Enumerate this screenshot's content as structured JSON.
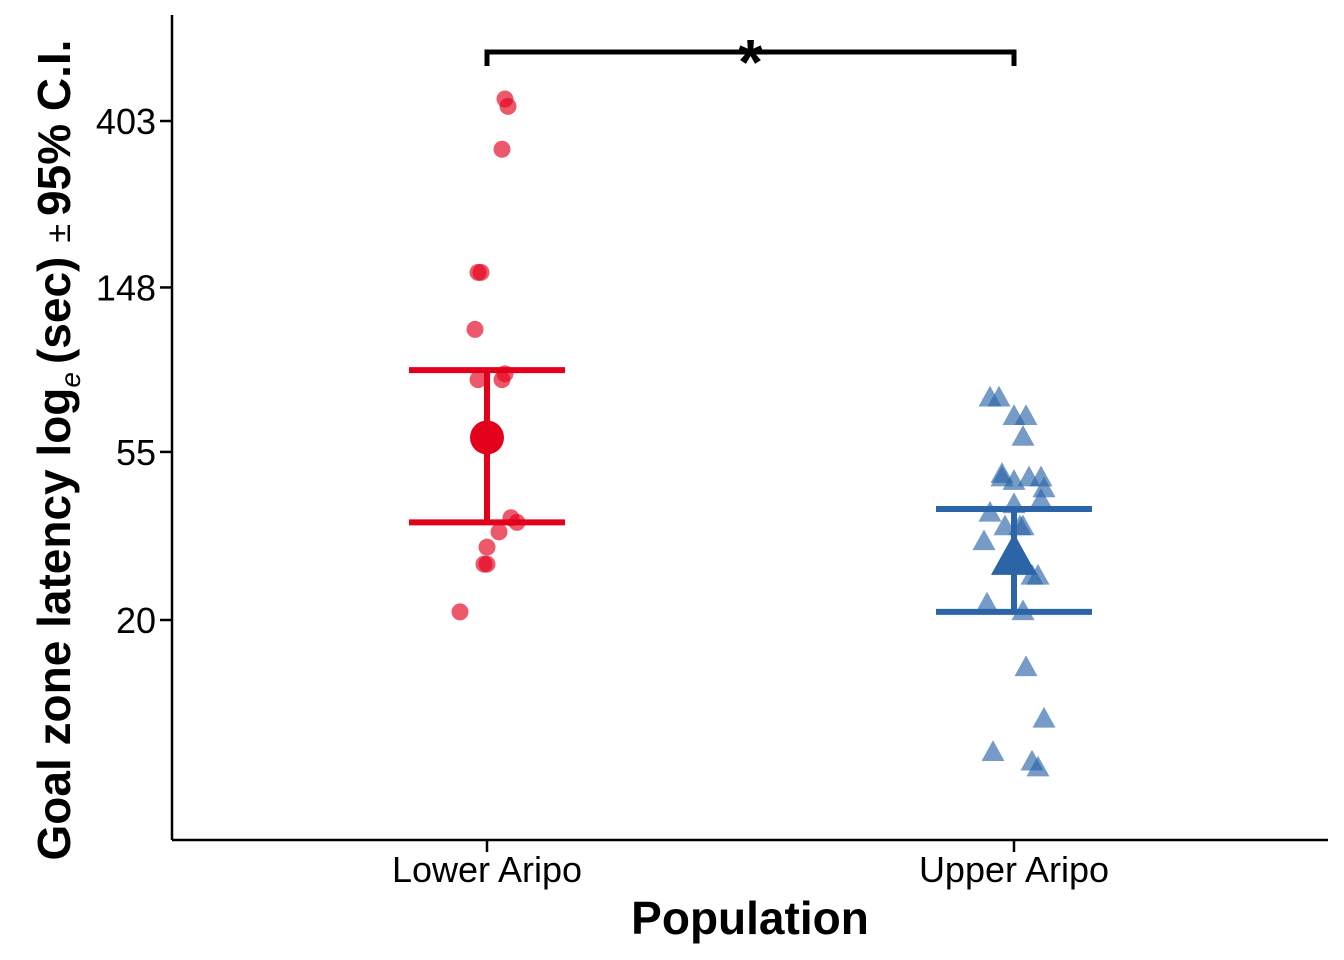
{
  "chart_data": {
    "type": "scatter",
    "xlabel": "Population",
    "ylabel_parts": {
      "prefix": "Goal zone latency log",
      "subscript": "e",
      "suffix": "(sec)",
      "ci": "± 95% C.I."
    },
    "y_scale": "log",
    "y_ticks": [
      {
        "value": 20,
        "label": "20"
      },
      {
        "value": 55,
        "label": "55"
      },
      {
        "value": 148,
        "label": "148"
      },
      {
        "value": 403,
        "label": "403"
      }
    ],
    "ylim": [
      5,
      700
    ],
    "categories": [
      "Lower Aripo",
      "Upper Aripo"
    ],
    "significance": {
      "label": "*",
      "between": [
        "Lower Aripo",
        "Upper Aripo"
      ]
    },
    "series": [
      {
        "category": "Lower Aripo",
        "color": "#E3001B",
        "marker": "circle",
        "mean": 60,
        "ci_lower": 36,
        "ci_upper": 90,
        "points": [
          {
            "offset": 0.06,
            "y": 460
          },
          {
            "offset": 0.07,
            "y": 440
          },
          {
            "offset": 0.05,
            "y": 340
          },
          {
            "offset": -0.03,
            "y": 162
          },
          {
            "offset": -0.02,
            "y": 162
          },
          {
            "offset": -0.04,
            "y": 115
          },
          {
            "offset": 0.06,
            "y": 88
          },
          {
            "offset": -0.03,
            "y": 85
          },
          {
            "offset": 0.05,
            "y": 85
          },
          {
            "offset": 0.08,
            "y": 37
          },
          {
            "offset": 0.1,
            "y": 36
          },
          {
            "offset": 0.04,
            "y": 34
          },
          {
            "offset": 0.0,
            "y": 31
          },
          {
            "offset": -0.01,
            "y": 28
          },
          {
            "offset": 0.0,
            "y": 28
          },
          {
            "offset": -0.09,
            "y": 21
          }
        ]
      },
      {
        "category": "Upper Aripo",
        "color": "#2B65A8",
        "marker": "triangle",
        "mean": 29,
        "ci_lower": 21,
        "ci_upper": 39,
        "points": [
          {
            "offset": -0.08,
            "y": 76
          },
          {
            "offset": -0.05,
            "y": 76
          },
          {
            "offset": 0.0,
            "y": 68
          },
          {
            "offset": 0.04,
            "y": 68
          },
          {
            "offset": 0.03,
            "y": 60
          },
          {
            "offset": -0.04,
            "y": 48
          },
          {
            "offset": -0.04,
            "y": 47
          },
          {
            "offset": 0.05,
            "y": 47
          },
          {
            "offset": 0.09,
            "y": 47
          },
          {
            "offset": 0.0,
            "y": 46
          },
          {
            "offset": 0.1,
            "y": 44
          },
          {
            "offset": 0.09,
            "y": 41
          },
          {
            "offset": 0.0,
            "y": 40
          },
          {
            "offset": -0.08,
            "y": 38
          },
          {
            "offset": 0.02,
            "y": 35
          },
          {
            "offset": -0.03,
            "y": 35
          },
          {
            "offset": 0.03,
            "y": 35
          },
          {
            "offset": -0.1,
            "y": 32
          },
          {
            "offset": -0.01,
            "y": 30
          },
          {
            "offset": 0.06,
            "y": 26
          },
          {
            "offset": 0.08,
            "y": 26
          },
          {
            "offset": -0.09,
            "y": 22
          },
          {
            "offset": 0.03,
            "y": 21
          },
          {
            "offset": 0.04,
            "y": 15
          },
          {
            "offset": 0.1,
            "y": 11
          },
          {
            "offset": -0.07,
            "y": 9
          },
          {
            "offset": 0.06,
            "y": 8.5
          },
          {
            "offset": 0.08,
            "y": 8.2
          }
        ]
      }
    ],
    "grid": false,
    "legend": "none"
  }
}
